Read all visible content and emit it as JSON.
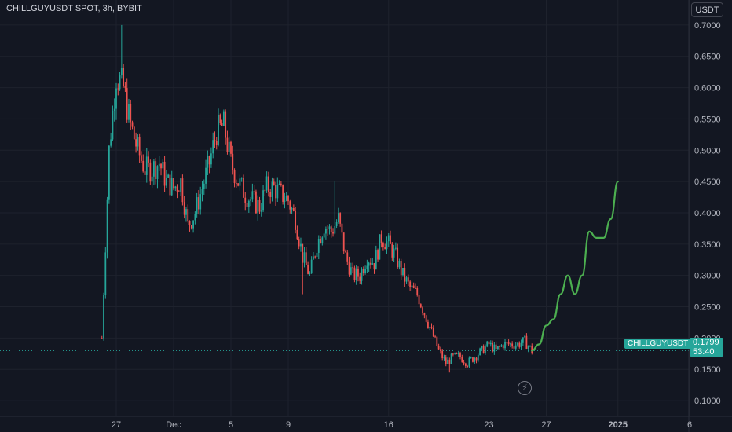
{
  "header": {
    "symbol_title": "CHILLGUYUSDT SPOT, 3h, BYBIT",
    "currency": "USDT"
  },
  "last_price": {
    "symbol": "CHILLGUYUSDT",
    "price": "0.1799",
    "countdown": "53:40"
  },
  "icons": {
    "lightning": "lightning-icon"
  },
  "colors": {
    "background": "#131722",
    "up": "#26a69a",
    "down": "#ef5350",
    "projection": "#4caf50",
    "grid": "#1e222d"
  },
  "chart_data": {
    "type": "candlestick",
    "interval": "3h",
    "ylim": [
      0.075,
      0.74
    ],
    "y_ticks": [
      "0.7000",
      "0.6500",
      "0.6000",
      "0.5500",
      "0.5000",
      "0.4500",
      "0.4000",
      "0.3500",
      "0.3000",
      "0.2500",
      "0.2000",
      "0.1500",
      "0.1000"
    ],
    "x_ticks": [
      "27",
      "Dec",
      "5",
      "9",
      "16",
      "23",
      "27",
      "2025",
      "6"
    ],
    "x_tick_dates": [
      "2024-11-27",
      "2024-12-01",
      "2024-12-05",
      "2024-12-09",
      "2024-12-16",
      "2024-12-23",
      "2024-12-27",
      "2025-01-01",
      "2025-01-06"
    ],
    "close_path": [
      [
        "2024-11-26 00:00",
        0.2
      ],
      [
        "2024-11-26 12:00",
        0.5
      ],
      [
        "2024-11-27 00:00",
        0.62
      ],
      [
        "2024-11-27 12:00",
        0.6
      ],
      [
        "2024-11-28 00:00",
        0.54
      ],
      [
        "2024-11-28 12:00",
        0.5
      ],
      [
        "2024-11-29 00:00",
        0.47
      ],
      [
        "2024-11-29 12:00",
        0.47
      ],
      [
        "2024-11-30 00:00",
        0.48
      ],
      [
        "2024-11-30 12:00",
        0.45
      ],
      [
        "2024-12-01 00:00",
        0.44
      ],
      [
        "2024-12-01 12:00",
        0.45
      ],
      [
        "2024-12-02 00:00",
        0.38
      ],
      [
        "2024-12-02 12:00",
        0.4
      ],
      [
        "2024-12-03 00:00",
        0.44
      ],
      [
        "2024-12-03 12:00",
        0.48
      ],
      [
        "2024-12-04 00:00",
        0.53
      ],
      [
        "2024-12-04 12:00",
        0.54
      ],
      [
        "2024-12-05 00:00",
        0.48
      ],
      [
        "2024-12-05 12:00",
        0.45
      ],
      [
        "2024-12-06 00:00",
        0.43
      ],
      [
        "2024-12-06 12:00",
        0.42
      ],
      [
        "2024-12-07 00:00",
        0.41
      ],
      [
        "2024-12-07 12:00",
        0.44
      ],
      [
        "2024-12-08 00:00",
        0.44
      ],
      [
        "2024-12-08 12:00",
        0.43
      ],
      [
        "2024-12-09 00:00",
        0.42
      ],
      [
        "2024-12-09 12:00",
        0.39
      ],
      [
        "2024-12-10 00:00",
        0.33
      ],
      [
        "2024-12-10 12:00",
        0.3
      ],
      [
        "2024-12-11 00:00",
        0.35
      ],
      [
        "2024-12-11 12:00",
        0.38
      ],
      [
        "2024-12-12 00:00",
        0.37
      ],
      [
        "2024-12-12 12:00",
        0.39
      ],
      [
        "2024-12-13 00:00",
        0.33
      ],
      [
        "2024-12-13 12:00",
        0.3
      ],
      [
        "2024-12-14 00:00",
        0.3
      ],
      [
        "2024-12-14 12:00",
        0.33
      ],
      [
        "2024-12-15 00:00",
        0.32
      ],
      [
        "2024-12-15 12:00",
        0.36
      ],
      [
        "2024-12-16 00:00",
        0.35
      ],
      [
        "2024-12-16 12:00",
        0.33
      ],
      [
        "2024-12-17 00:00",
        0.3
      ],
      [
        "2024-12-17 12:00",
        0.28
      ],
      [
        "2024-12-18 00:00",
        0.27
      ],
      [
        "2024-12-18 12:00",
        0.24
      ],
      [
        "2024-12-19 00:00",
        0.21
      ],
      [
        "2024-12-19 12:00",
        0.18
      ],
      [
        "2024-12-20 00:00",
        0.16
      ],
      [
        "2024-12-20 12:00",
        0.17
      ],
      [
        "2024-12-21 00:00",
        0.17
      ],
      [
        "2024-12-21 12:00",
        0.16
      ],
      [
        "2024-12-22 00:00",
        0.17
      ],
      [
        "2024-12-22 12:00",
        0.18
      ],
      [
        "2024-12-23 00:00",
        0.19
      ],
      [
        "2024-12-23 12:00",
        0.18
      ],
      [
        "2024-12-24 00:00",
        0.19
      ],
      [
        "2024-12-24 12:00",
        0.19
      ],
      [
        "2024-12-25 00:00",
        0.19
      ],
      [
        "2024-12-25 12:00",
        0.195
      ],
      [
        "2024-12-26 00:00",
        0.18
      ]
    ],
    "projection": [
      [
        "2024-12-26 00:00",
        0.18
      ],
      [
        "2024-12-26 12:00",
        0.19
      ],
      [
        "2024-12-27 00:00",
        0.22
      ],
      [
        "2024-12-27 12:00",
        0.23
      ],
      [
        "2024-12-28 00:00",
        0.27
      ],
      [
        "2024-12-28 12:00",
        0.3
      ],
      [
        "2024-12-29 00:00",
        0.27
      ],
      [
        "2024-12-29 12:00",
        0.3
      ],
      [
        "2024-12-30 00:00",
        0.37
      ],
      [
        "2024-12-30 12:00",
        0.36
      ],
      [
        "2024-12-31 00:00",
        0.36
      ],
      [
        "2024-12-31 12:00",
        0.39
      ],
      [
        "2025-01-01 00:00",
        0.45
      ]
    ],
    "notable_highs": [
      [
        "2024-11-27 09:00",
        0.7
      ],
      [
        "2024-12-04 12:00",
        0.565
      ],
      [
        "2024-12-12 06:00",
        0.45
      ]
    ],
    "notable_lows": [
      [
        "2024-11-26 00:00",
        0.2
      ],
      [
        "2024-12-10 00:00",
        0.27
      ],
      [
        "2024-12-20 06:00",
        0.145
      ]
    ]
  }
}
